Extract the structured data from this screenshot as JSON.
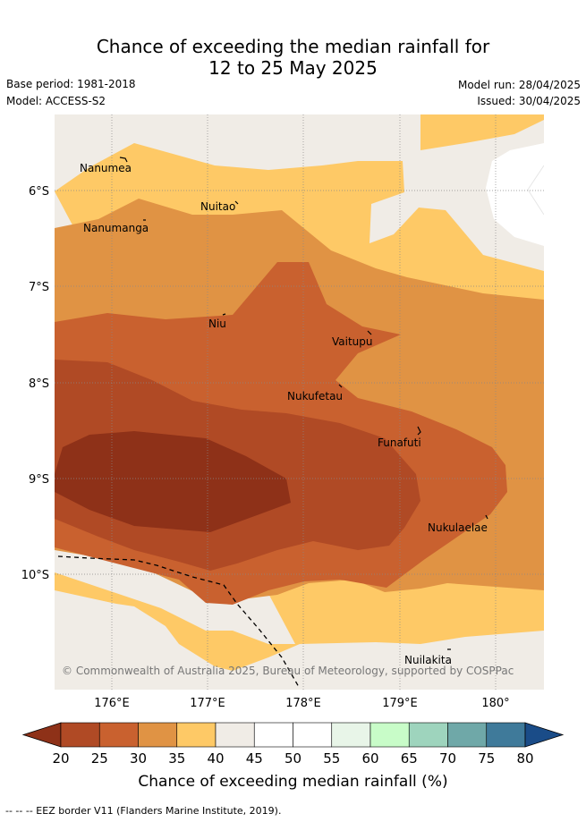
{
  "title_line1": "Chance of exceeding the median rainfall for",
  "title_line2": "12 to 25 May 2025",
  "base_period": "Base period: 1981-2018",
  "model": "Model: ACCESS-S2",
  "model_run": "Model run: 28/04/2025",
  "issued": "Issued: 30/04/2025",
  "copyright": "© Commonwealth of Australia 2025, Bureau of Meteorology, supported by COSPPac",
  "lat_labels": [
    "6°S",
    "7°S",
    "8°S",
    "9°S",
    "10°S"
  ],
  "lon_labels": [
    "176°E",
    "177°E",
    "178°E",
    "179°E",
    "180°"
  ],
  "islands": [
    "Nanumea",
    "Nuitao",
    "Nanumanga",
    "Niu",
    "Vaitupu",
    "Nukufetau",
    "Funafuti",
    "Nukulaelae",
    "Nuilakita"
  ],
  "colorbar": {
    "ticks": [
      "20",
      "25",
      "30",
      "35",
      "40",
      "45",
      "50",
      "55",
      "60",
      "65",
      "70",
      "75",
      "80"
    ],
    "under_color": "#8e3118",
    "colors": [
      "#b04a25",
      "#c9612f",
      "#e09344",
      "#fec966",
      "#f0ece6",
      "#ffffff",
      "#ffffff",
      "#e8f5e8",
      "#c8fcc8",
      "#9ed4bd",
      "#6fa8a8",
      "#3f7a9a"
    ],
    "over_color": "#1a4c88",
    "label": "Chance of exceeding median rainfall (%)"
  },
  "footnote": "--  --  -- EEZ border V11 (Flanders Marine Institute, 2019)."
}
